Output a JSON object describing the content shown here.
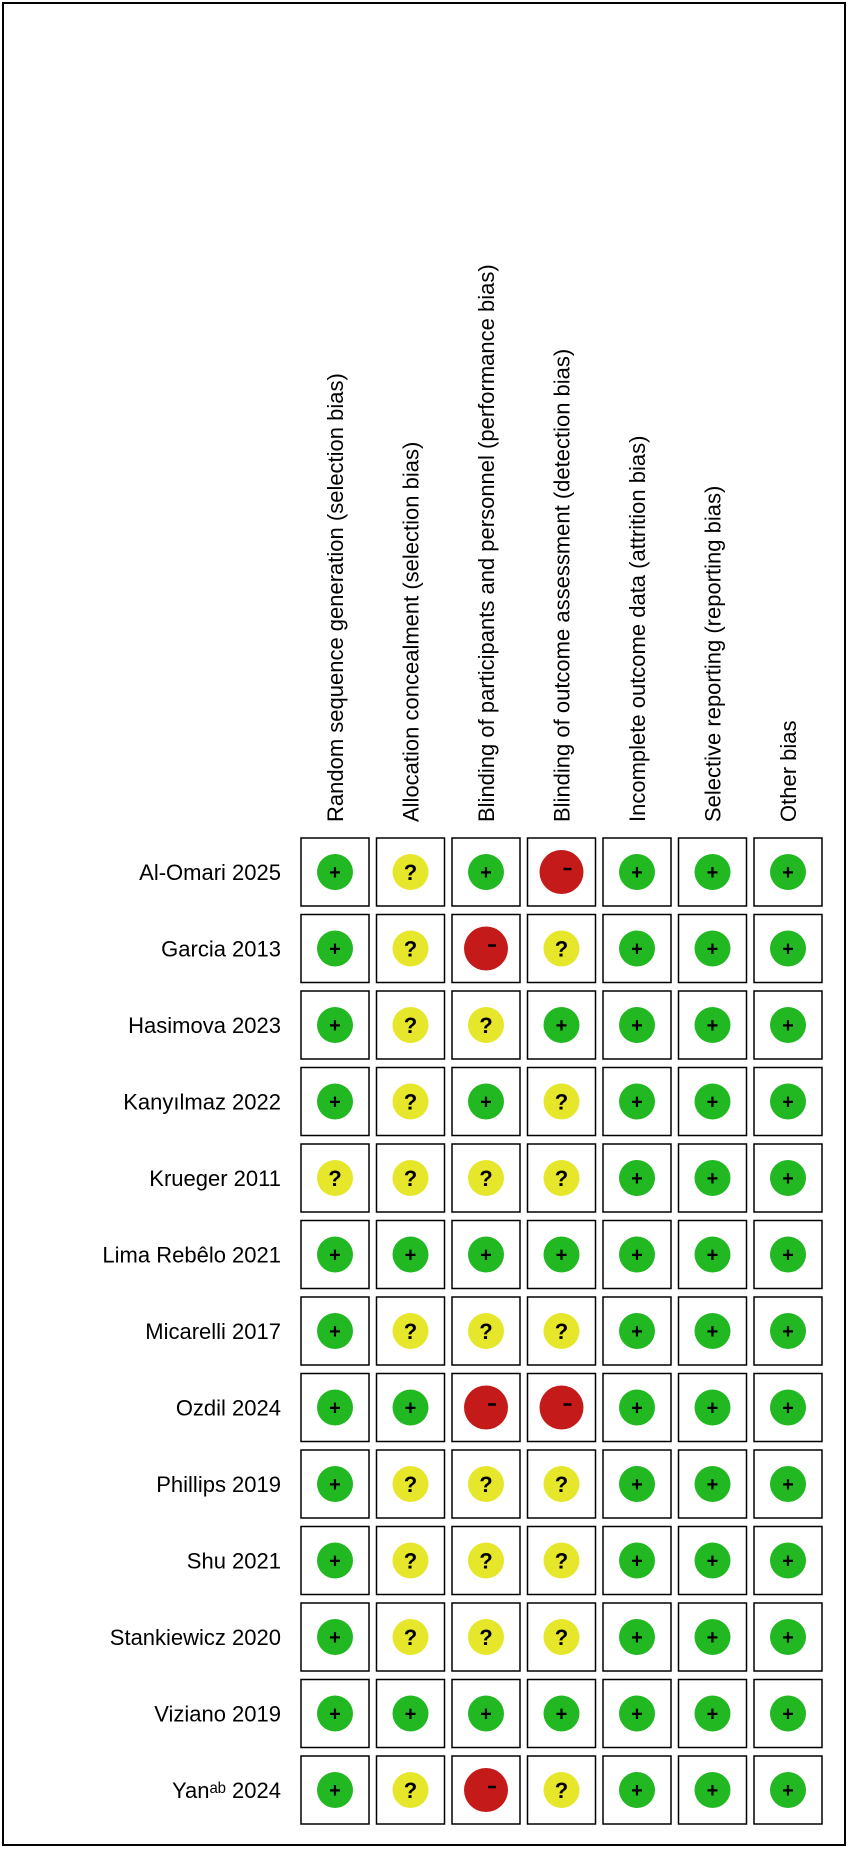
{
  "chart_data": {
    "type": "table",
    "domains": [
      "Random sequence generation (selection bias)",
      "Allocation concealment (selection bias)",
      "Blinding of participants and personnel (performance bias)",
      "Blinding of outcome assessment (detection bias)",
      "Incomplete outcome data (attrition bias)",
      "Selective reporting (reporting bias)",
      "Other bias"
    ],
    "studies": [
      {
        "name": "Al-Omari 2025",
        "ratings": [
          "+",
          "?",
          "+",
          "-",
          "+",
          "+",
          "+"
        ]
      },
      {
        "name": "Garcia 2013",
        "ratings": [
          "+",
          "?",
          "-",
          "?",
          "+",
          "+",
          "+"
        ]
      },
      {
        "name": "Hasimova 2023",
        "ratings": [
          "+",
          "?",
          "?",
          "+",
          "+",
          "+",
          "+"
        ]
      },
      {
        "name": "Kanyılmaz 2022",
        "ratings": [
          "+",
          "?",
          "+",
          "?",
          "+",
          "+",
          "+"
        ]
      },
      {
        "name": "Krueger 2011",
        "ratings": [
          "?",
          "?",
          "?",
          "?",
          "+",
          "+",
          "+"
        ]
      },
      {
        "name": "Lima Rebêlo 2021",
        "ratings": [
          "+",
          "+",
          "+",
          "+",
          "+",
          "+",
          "+"
        ]
      },
      {
        "name": "Micarelli 2017",
        "ratings": [
          "+",
          "?",
          "?",
          "?",
          "+",
          "+",
          "+"
        ]
      },
      {
        "name": "Ozdil 2024",
        "ratings": [
          "+",
          "+",
          "-",
          "-",
          "+",
          "+",
          "+"
        ]
      },
      {
        "name": "Phillips 2019",
        "ratings": [
          "+",
          "?",
          "?",
          "?",
          "+",
          "+",
          "+"
        ]
      },
      {
        "name": "Shu 2021",
        "ratings": [
          "+",
          "?",
          "?",
          "?",
          "+",
          "+",
          "+"
        ]
      },
      {
        "name": "Stankiewicz 2020",
        "ratings": [
          "+",
          "?",
          "?",
          "?",
          "+",
          "+",
          "+"
        ]
      },
      {
        "name": "Viziano 2019",
        "ratings": [
          "+",
          "+",
          "+",
          "+",
          "+",
          "+",
          "+"
        ]
      },
      {
        "name": "Yanᵃᵇ 2024",
        "ratings": [
          "+",
          "?",
          "-",
          "?",
          "+",
          "+",
          "+"
        ]
      }
    ],
    "rating_colors": {
      "+": "#22b822",
      "?": "#e6e62a",
      "-": "#c41a1a"
    }
  }
}
